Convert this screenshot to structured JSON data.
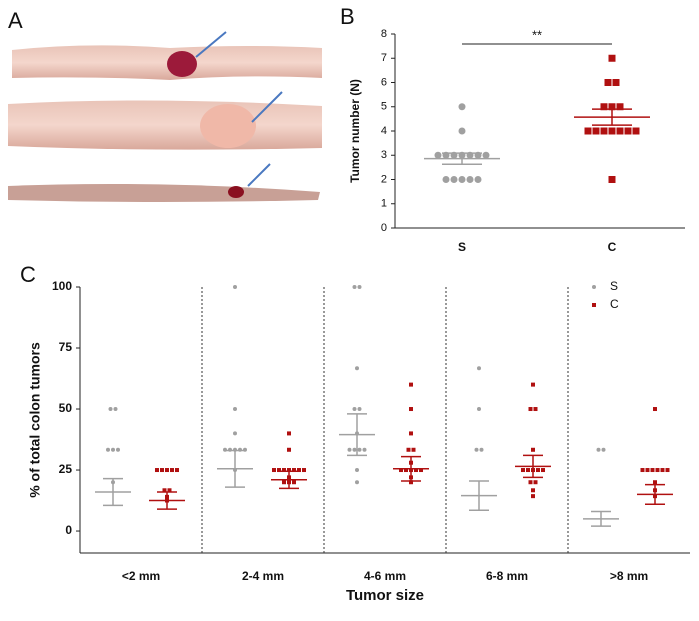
{
  "panel_a_label": "A",
  "chart_data": [
    {
      "type": "dotplot",
      "panel_label": "B",
      "y_label": "Tumor number (N)",
      "categories": [
        "S",
        "C"
      ],
      "colors": [
        "#a0a0a0",
        "#b01010"
      ],
      "markers": [
        "circle",
        "square"
      ],
      "values": [
        [
          5,
          4,
          3,
          3,
          3,
          3,
          3,
          3,
          3,
          2,
          2,
          2,
          2,
          2
        ],
        [
          7,
          6,
          6,
          5,
          5,
          5,
          4,
          4,
          4,
          4,
          4,
          4,
          4,
          2
        ]
      ],
      "mean": [
        2.86,
        4.57
      ],
      "sem": [
        0.23,
        0.33
      ],
      "significance": "**",
      "ylim": [
        0,
        8
      ],
      "yticks": [
        0,
        1,
        2,
        3,
        4,
        5,
        6,
        7,
        8
      ]
    },
    {
      "type": "grouped_dotplot",
      "panel_label": "C",
      "y_label": "% of total colon tumors",
      "x_label": "Tumor size",
      "categories": [
        "<2 mm",
        "2-4 mm",
        "4-6 mm",
        "6-8 mm",
        ">8 mm"
      ],
      "series": [
        {
          "name": "S",
          "color": "#a0a0a0",
          "marker": "circle",
          "values": [
            [
              50,
              50,
              33.3,
              33.3,
              33.3,
              20
            ],
            [
              100,
              50,
              40,
              33.3,
              33.3,
              33.3,
              33.3,
              33.3,
              25
            ],
            [
              100,
              100,
              66.7,
              50,
              50,
              40,
              33.3,
              33.3,
              33.3,
              33.3,
              25,
              20
            ],
            [
              66.7,
              50,
              33.3,
              33.3
            ],
            [
              33.3,
              33.3
            ]
          ],
          "mean": [
            16,
            25.5,
            39.5,
            14.5,
            5
          ],
          "sem": [
            5.5,
            7.5,
            8.5,
            6,
            3
          ]
        },
        {
          "name": "C",
          "color": "#b01010",
          "marker": "square",
          "values": [
            [
              25,
              25,
              25,
              25,
              25,
              16.7,
              16.7,
              14,
              12.5
            ],
            [
              40,
              33.3,
              25,
              25,
              25,
              25,
              25,
              25,
              25,
              22,
              20,
              20,
              20
            ],
            [
              60,
              50,
              40,
              33.3,
              33.3,
              28,
              25,
              25,
              25,
              25,
              25,
              22,
              20
            ],
            [
              60,
              50,
              50,
              33.3,
              25,
              25,
              25,
              25,
              25,
              20,
              20,
              16.7,
              14.3
            ],
            [
              50,
              25,
              25,
              25,
              25,
              25,
              25,
              20,
              16.7,
              14.3
            ]
          ],
          "mean": [
            12.5,
            21,
            25.5,
            26.5,
            15
          ],
          "sem": [
            3.5,
            3.5,
            5,
            4.5,
            4
          ]
        }
      ],
      "ylim": [
        -9,
        100
      ],
      "yticks": [
        0,
        25,
        50,
        75,
        100
      ],
      "legend": "upper right"
    }
  ]
}
